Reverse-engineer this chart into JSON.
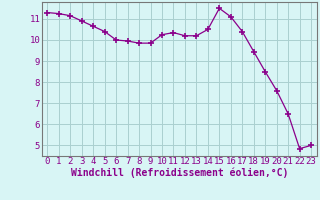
{
  "x": [
    0,
    1,
    2,
    3,
    4,
    5,
    6,
    7,
    8,
    9,
    10,
    11,
    12,
    13,
    14,
    15,
    16,
    17,
    18,
    19,
    20,
    21,
    22,
    23
  ],
  "y": [
    11.3,
    11.25,
    11.15,
    10.9,
    10.65,
    10.4,
    10.0,
    9.95,
    9.85,
    9.85,
    10.25,
    10.35,
    10.2,
    10.2,
    10.5,
    11.5,
    11.1,
    10.4,
    9.45,
    8.5,
    7.6,
    6.5,
    4.85,
    5.0
  ],
  "line_color": "#8B008B",
  "marker": "+",
  "marker_size": 4,
  "marker_lw": 1.2,
  "bg_color": "#d8f5f5",
  "grid_color": "#aacfcf",
  "xlabel": "Windchill (Refroidissement éolien,°C)",
  "xlabel_fontsize": 7,
  "tick_fontsize": 6.5,
  "ylim": [
    4.5,
    11.8
  ],
  "xlim": [
    -0.5,
    23.5
  ],
  "yticks": [
    5,
    6,
    7,
    8,
    9,
    10,
    11
  ],
  "xticks": [
    0,
    1,
    2,
    3,
    4,
    5,
    6,
    7,
    8,
    9,
    10,
    11,
    12,
    13,
    14,
    15,
    16,
    17,
    18,
    19,
    20,
    21,
    22,
    23
  ],
  "spine_color": "#777777",
  "label_color": "#8B008B",
  "line_width": 0.9
}
